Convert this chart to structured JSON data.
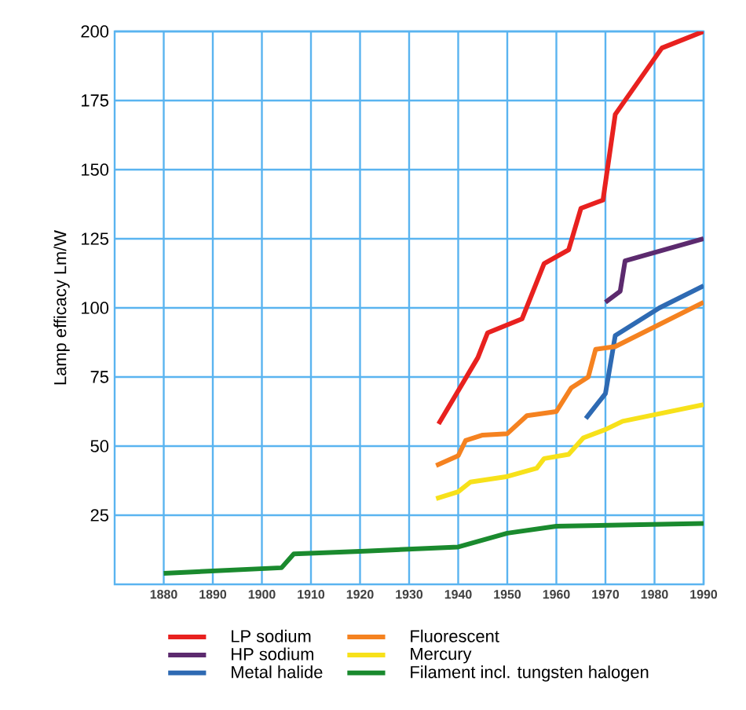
{
  "chart_data": {
    "type": "line",
    "ylabel": "Lamp efficacy Lm/W",
    "xlim": [
      1870,
      1990
    ],
    "xticks": [
      1880,
      1890,
      1900,
      1910,
      1920,
      1930,
      1940,
      1950,
      1960,
      1970,
      1980,
      1990
    ],
    "ylim": [
      0,
      200
    ],
    "yticks": [
      25,
      50,
      75,
      100,
      125,
      150,
      175,
      200
    ],
    "grid": true,
    "legend": "bottom",
    "line_style": "solid",
    "marker": "none",
    "series": [
      {
        "name": "LP sodium",
        "color": "#e8211f",
        "x": [
          1936,
          1944,
          1946,
          1953,
          1957.5,
          1962.5,
          1965,
          1969.5,
          1972,
          1981.5,
          1990
        ],
        "values": [
          58,
          82,
          91,
          96,
          116,
          121,
          136,
          139,
          170,
          194,
          200
        ]
      },
      {
        "name": "HP sodium",
        "color": "#5c2a6e",
        "x": [
          1970,
          1973,
          1974,
          1990
        ],
        "values": [
          102,
          106,
          117,
          125
        ]
      },
      {
        "name": "Metal halide",
        "color": "#2e6ab3",
        "x": [
          1966,
          1970,
          1972,
          1981,
          1990
        ],
        "values": [
          60,
          69,
          90,
          100,
          108
        ]
      },
      {
        "name": "Fluorescent",
        "color": "#f58220",
        "x": [
          1935.5,
          1940,
          1941.5,
          1945,
          1950,
          1954,
          1960,
          1963,
          1966.5,
          1968,
          1972,
          1990
        ],
        "values": [
          43,
          46.5,
          52,
          54,
          54.5,
          61,
          62.5,
          71,
          75,
          85,
          86,
          102
        ]
      },
      {
        "name": "Mercury",
        "color": "#f7e11a",
        "x": [
          1935.5,
          1940,
          1942.5,
          1950,
          1956,
          1957.5,
          1962.5,
          1965.5,
          1970,
          1973.5,
          1990
        ],
        "values": [
          31,
          33.5,
          37,
          39,
          42,
          45.5,
          47,
          53,
          56,
          59,
          65
        ]
      },
      {
        "name": "Filament incl. tungsten halogen",
        "color": "#1a8a2e",
        "x": [
          1880,
          1904,
          1906.5,
          1921,
          1940,
          1950,
          1960,
          1990
        ],
        "values": [
          4,
          6,
          11,
          12,
          13.5,
          18.5,
          21,
          22
        ]
      }
    ]
  }
}
